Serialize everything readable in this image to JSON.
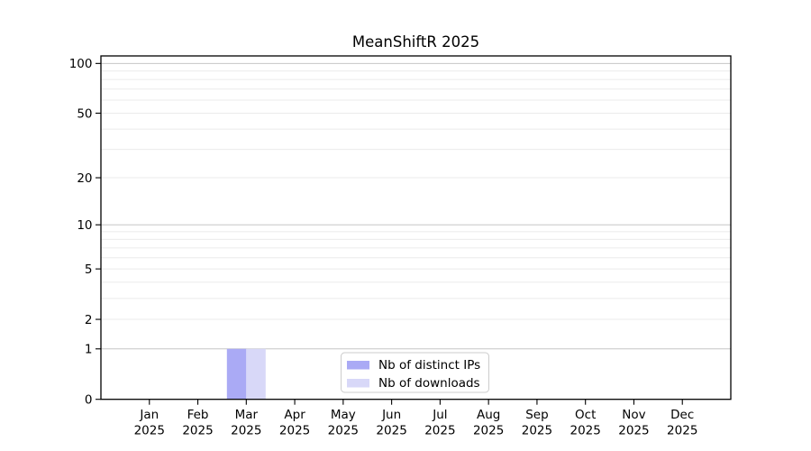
{
  "title": "MeanShiftR 2025",
  "chart_data": {
    "type": "bar",
    "title": "MeanShiftR 2025",
    "categories": [
      "Jan",
      "Feb",
      "Mar",
      "Apr",
      "May",
      "Jun",
      "Jul",
      "Aug",
      "Sep",
      "Oct",
      "Nov",
      "Dec"
    ],
    "category_year": "2025",
    "series": [
      {
        "name": "Nb of distinct IPs",
        "color": "#aaaaf5",
        "values": [
          0,
          0,
          1,
          0,
          0,
          0,
          0,
          0,
          0,
          0,
          0,
          0
        ]
      },
      {
        "name": "Nb of downloads",
        "color": "#d8d8f8",
        "values": [
          0,
          0,
          1,
          0,
          0,
          0,
          0,
          0,
          0,
          0,
          0,
          0
        ]
      }
    ],
    "yscale": "log1p",
    "ylim": [
      0,
      111
    ],
    "y_ticks": [
      0,
      1,
      2,
      5,
      10,
      20,
      50,
      100
    ],
    "grid_major": [
      1,
      10,
      100
    ],
    "grid_minor": [
      2,
      3,
      4,
      5,
      6,
      7,
      8,
      9,
      20,
      30,
      40,
      50,
      60,
      70,
      80,
      90
    ],
    "grid": "horizontal",
    "legend_position": "lower center",
    "bar_total_width_fraction": 0.8,
    "colors": {
      "major_grid": "#c6c6c6",
      "minor_grid": "#ebebeb",
      "spine": "#000000",
      "tick_text": "#000000",
      "legend_border": "#cccccc",
      "background": "#ffffff"
    }
  }
}
